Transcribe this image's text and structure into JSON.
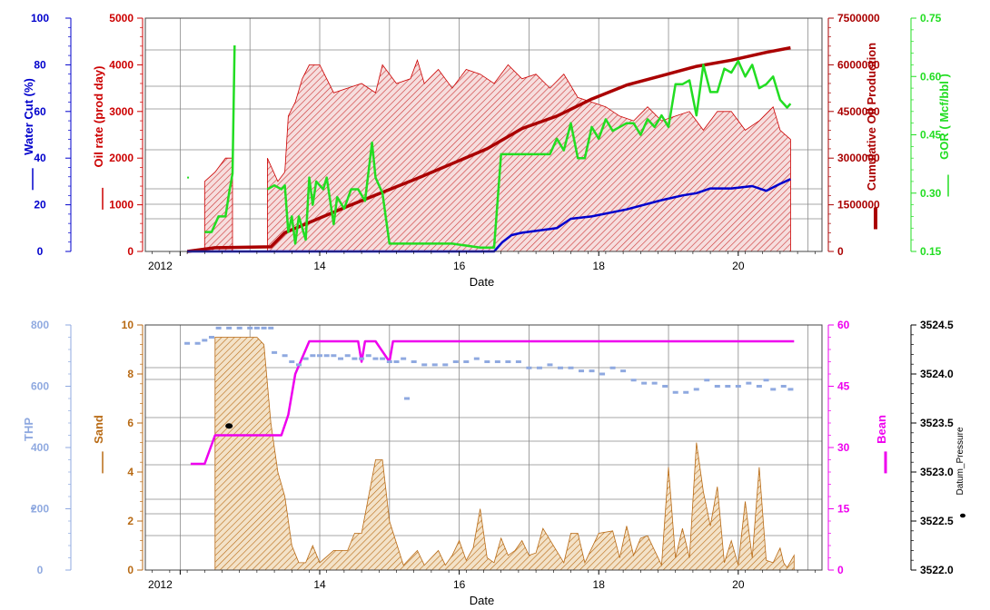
{
  "colors": {
    "blue": "#0000cc",
    "red": "#cc0000",
    "darkred": "#aa0000",
    "green": "#22dd22",
    "lightblue": "#8fa9e0",
    "brown": "#b86a14",
    "magenta": "#ee00ee",
    "hatch_red": "#cc3333",
    "fill_red": "#f6dede",
    "fill_brown": "#f3e2c8"
  },
  "chart_data": [
    {
      "type": "area",
      "xlabel": "Date",
      "x_ticks": [
        "2012",
        "14",
        "16",
        "18",
        "20"
      ],
      "xlim": [
        2011.6,
        2021.3
      ],
      "axes": [
        {
          "label": "Water Cut (%)",
          "ticks": [
            "0",
            "20",
            "40",
            "60",
            "80",
            "100"
          ],
          "ylim": [
            0,
            100
          ],
          "color": "#0000cc"
        },
        {
          "label": "Oil rate (prod day)",
          "ticks": [
            "0",
            "1000",
            "2000",
            "3000",
            "4000",
            "5000"
          ],
          "ylim": [
            0,
            5000
          ],
          "color": "#cc0000"
        },
        {
          "label": "Cumulative Oil Production",
          "ticks": [
            "0",
            "1500000",
            "3000000",
            "4500000",
            "6000000",
            "7500000"
          ],
          "ylim": [
            0,
            7500000
          ],
          "color": "#aa0000"
        },
        {
          "label": "GOR ( Mcf/bbl )",
          "ticks": [
            "0.15",
            "0.30",
            "0.45",
            "0.60",
            "0.75"
          ],
          "ylim": [
            0.15,
            0.75
          ],
          "color": "#22dd22"
        }
      ],
      "series": [
        {
          "axis": 1,
          "kind": "area",
          "x": [
            2012.45,
            2012.45,
            2012.6,
            2012.75,
            2012.85,
            2012.85,
            2013.35,
            2013.35,
            2013.5,
            2013.6,
            2013.65,
            2013.75,
            2013.85,
            2013.95,
            2014.1,
            2014.3,
            2014.5,
            2014.7,
            2014.9,
            2015.0,
            2015.2,
            2015.4,
            2015.5,
            2015.6,
            2015.8,
            2016.0,
            2016.2,
            2016.4,
            2016.6,
            2016.8,
            2017.0,
            2017.2,
            2017.4,
            2017.6,
            2017.8,
            2018.0,
            2018.2,
            2018.4,
            2018.6,
            2018.8,
            2019.0,
            2019.2,
            2019.4,
            2019.6,
            2019.8,
            2020.0,
            2020.2,
            2020.4,
            2020.6,
            2020.7,
            2020.85,
            2020.85
          ],
          "values": [
            0,
            1500,
            1700,
            2000,
            2000,
            0,
            0,
            2000,
            1500,
            1700,
            2900,
            3200,
            3700,
            4000,
            4000,
            3400,
            3500,
            3600,
            3400,
            4000,
            3600,
            3700,
            4100,
            3600,
            3900,
            3500,
            3900,
            3800,
            3600,
            4000,
            3700,
            3800,
            3500,
            3800,
            3300,
            3200,
            3100,
            2900,
            2800,
            3100,
            2800,
            2900,
            3000,
            2600,
            3000,
            3000,
            2600,
            2800,
            3100,
            2600,
            2400,
            0
          ]
        },
        {
          "axis": 2,
          "kind": "line",
          "x": [
            2012.2,
            2012.6,
            2013.4,
            2013.6,
            2014.5,
            2015.5,
            2016.5,
            2017.0,
            2017.5,
            2018.0,
            2018.5,
            2019.0,
            2019.5,
            2020.0,
            2020.5,
            2020.85
          ],
          "values": [
            0,
            120000,
            150000,
            600000,
            1450000,
            2350000,
            3300000,
            3950000,
            4350000,
            4900000,
            5350000,
            5650000,
            5950000,
            6150000,
            6400000,
            6550000
          ]
        },
        {
          "axis": 0,
          "kind": "line",
          "x": [
            2012.2,
            2016.6,
            2016.72,
            2016.85,
            2017.0,
            2017.5,
            2017.7,
            2018.0,
            2018.5,
            2019.0,
            2019.3,
            2019.5,
            2019.7,
            2020.0,
            2020.3,
            2020.5,
            2020.7,
            2020.85
          ],
          "values": [
            0,
            0,
            4,
            7,
            8,
            10,
            14,
            15,
            18,
            22,
            24,
            25,
            27,
            27,
            28,
            26,
            29,
            31
          ]
        },
        {
          "axis": 3,
          "kind": "line",
          "x": [
            2012.2,
            2012.2
          ],
          "values": [
            0.34,
            0.34
          ]
        },
        {
          "axis": 3,
          "kind": "line",
          "x": [
            2012.45,
            2012.55,
            2012.65,
            2012.75,
            2012.8,
            2012.85,
            2012.88
          ],
          "values": [
            0.2,
            0.2,
            0.24,
            0.24,
            0.3,
            0.35,
            0.68
          ]
        },
        {
          "axis": 3,
          "kind": "line",
          "x": [
            2013.35,
            2013.45,
            2013.55,
            2013.6,
            2013.65,
            2013.7,
            2013.75,
            2013.8,
            2013.9,
            2013.95,
            2014.0,
            2014.05,
            2014.15,
            2014.2,
            2014.3,
            2014.35,
            2014.45,
            2014.55,
            2014.65,
            2014.75,
            2014.85,
            2014.9,
            2015.0,
            2015.1,
            2015.2,
            2015.3,
            2015.6,
            2016.0,
            2016.4,
            2016.6,
            2016.7,
            2016.75,
            2016.85,
            2017.0,
            2017.4,
            2017.5,
            2017.6,
            2017.7,
            2017.8,
            2017.9,
            2018.0,
            2018.1,
            2018.2,
            2018.3,
            2018.5,
            2018.6,
            2018.7,
            2018.8,
            2018.9,
            2019.0,
            2019.1,
            2019.2,
            2019.3,
            2019.4,
            2019.5,
            2019.6,
            2019.7,
            2019.8,
            2019.9,
            2020.0,
            2020.1,
            2020.2,
            2020.3,
            2020.4,
            2020.5,
            2020.6,
            2020.7,
            2020.8,
            2020.85
          ],
          "values": [
            0.31,
            0.32,
            0.31,
            0.32,
            0.2,
            0.24,
            0.17,
            0.24,
            0.18,
            0.34,
            0.27,
            0.33,
            0.31,
            0.34,
            0.22,
            0.29,
            0.26,
            0.31,
            0.31,
            0.28,
            0.43,
            0.34,
            0.3,
            0.17,
            0.17,
            0.17,
            0.17,
            0.17,
            0.16,
            0.16,
            0.4,
            0.4,
            0.4,
            0.4,
            0.4,
            0.44,
            0.41,
            0.48,
            0.39,
            0.39,
            0.47,
            0.44,
            0.49,
            0.46,
            0.48,
            0.48,
            0.45,
            0.49,
            0.47,
            0.5,
            0.47,
            0.58,
            0.58,
            0.59,
            0.5,
            0.63,
            0.56,
            0.56,
            0.62,
            0.61,
            0.64,
            0.6,
            0.63,
            0.57,
            0.58,
            0.6,
            0.54,
            0.52,
            0.53
          ]
        }
      ]
    },
    {
      "type": "area",
      "xlabel": "Date",
      "x_ticks": [
        "2012",
        "14",
        "16",
        "18",
        "20"
      ],
      "xlim": [
        2011.6,
        2021.3
      ],
      "axes": [
        {
          "label": "THP",
          "ticks": [
            "0",
            "200",
            "400",
            "600",
            "800"
          ],
          "ylim": [
            0,
            800
          ],
          "color": "#8fa9e0"
        },
        {
          "label": "Sand",
          "ticks": [
            "0",
            "2",
            "4",
            "6",
            "8",
            "10"
          ],
          "ylim": [
            0,
            10
          ],
          "color": "#b86a14"
        },
        {
          "label": "Bean",
          "ticks": [
            "0",
            "15",
            "30",
            "45",
            "60"
          ],
          "ylim": [
            0,
            60
          ],
          "color": "#ee00ee"
        },
        {
          "label": "Datum_Pressure",
          "ticks": [
            "3522.0",
            "3522.5",
            "3523.0",
            "3523.5",
            "3524.0",
            "3524.5"
          ],
          "ylim": [
            3522.0,
            3524.5
          ],
          "color": "#000000"
        }
      ],
      "series": [
        {
          "axis": 1,
          "kind": "area",
          "x": [
            2012.6,
            2012.6,
            2012.7,
            2013.2,
            2013.3,
            2013.4,
            2013.5,
            2013.6,
            2013.7,
            2013.8,
            2013.9,
            2014.0,
            2014.1,
            2014.3,
            2014.5,
            2014.6,
            2014.7,
            2014.9,
            2015.0,
            2015.1,
            2015.3,
            2015.4,
            2015.5,
            2015.6,
            2015.7,
            2015.8,
            2015.9,
            2016.0,
            2016.1,
            2016.2,
            2016.3,
            2016.4,
            2016.5,
            2016.6,
            2016.7,
            2016.8,
            2016.9,
            2017.0,
            2017.1,
            2017.2,
            2017.3,
            2017.6,
            2017.7,
            2017.8,
            2017.9,
            2018.1,
            2018.3,
            2018.4,
            2018.5,
            2018.6,
            2018.7,
            2018.8,
            2019.0,
            2019.1,
            2019.2,
            2019.3,
            2019.4,
            2019.5,
            2019.6,
            2019.7,
            2019.8,
            2019.9,
            2020.0,
            2020.1,
            2020.2,
            2020.3,
            2020.4,
            2020.5,
            2020.6,
            2020.7,
            2020.75,
            2020.8,
            2020.9,
            2020.9
          ],
          "values": [
            0,
            9.5,
            9.5,
            9.5,
            9.2,
            6,
            4,
            3,
            1,
            0.3,
            0.3,
            1,
            0.3,
            0.8,
            0.8,
            1.5,
            1.5,
            4.5,
            4.5,
            2,
            0.2,
            0.5,
            0.8,
            0.2,
            0.5,
            0.8,
            0.2,
            0.6,
            1.2,
            0.4,
            0.9,
            2.5,
            0.5,
            0.3,
            1.3,
            0.6,
            0.8,
            1.2,
            0.6,
            0.7,
            1.7,
            0.3,
            1.5,
            1.5,
            0.3,
            1.5,
            1.6,
            0.5,
            1.8,
            0.6,
            1.3,
            1.4,
            0.2,
            4.2,
            0.5,
            1.7,
            0.5,
            5.2,
            3.2,
            1.8,
            3.4,
            0.3,
            1.2,
            0.2,
            2.8,
            0.5,
            4.2,
            0.4,
            0.3,
            0.9,
            0.3,
            0.1,
            0.6,
            0
          ]
        },
        {
          "axis": 2,
          "kind": "line",
          "x": [
            2012.25,
            2012.45,
            2012.6,
            2012.75,
            2013.55,
            2013.65,
            2013.75,
            2013.85,
            2013.95,
            2014.65,
            2014.7,
            2014.75,
            2014.9,
            2015.1,
            2015.15,
            2015.2,
            2015.3,
            2020.9
          ],
          "values": [
            26,
            26,
            33,
            33,
            33,
            38,
            48,
            52,
            56,
            56,
            51,
            56,
            56,
            51,
            56,
            56,
            56,
            56
          ]
        },
        {
          "axis": 0,
          "kind": "scatter",
          "x": [
            2012.2,
            2012.35,
            2012.45,
            2012.55,
            2012.65,
            2012.8,
            2012.95,
            2013.1,
            2013.2,
            2013.3,
            2013.4,
            2013.45,
            2013.6,
            2013.7,
            2013.8,
            2013.9,
            2014.0,
            2014.1,
            2014.2,
            2014.3,
            2014.4,
            2014.5,
            2014.6,
            2014.7,
            2014.8,
            2014.9,
            2015.0,
            2015.1,
            2015.2,
            2015.3,
            2015.35,
            2015.45,
            2015.6,
            2015.75,
            2015.9,
            2016.05,
            2016.2,
            2016.35,
            2016.5,
            2016.65,
            2016.8,
            2016.95,
            2017.1,
            2017.25,
            2017.4,
            2017.55,
            2017.7,
            2017.85,
            2018.0,
            2018.15,
            2018.3,
            2018.45,
            2018.6,
            2018.75,
            2018.9,
            2019.05,
            2019.2,
            2019.35,
            2019.5,
            2019.65,
            2019.8,
            2019.95,
            2020.1,
            2020.25,
            2020.4,
            2020.5,
            2020.6,
            2020.75,
            2020.85
          ],
          "values": [
            740,
            740,
            750,
            760,
            790,
            790,
            790,
            790,
            790,
            790,
            790,
            710,
            700,
            680,
            670,
            690,
            700,
            700,
            700,
            700,
            690,
            700,
            690,
            690,
            700,
            690,
            690,
            680,
            680,
            690,
            560,
            680,
            670,
            670,
            670,
            680,
            680,
            690,
            680,
            680,
            680,
            680,
            660,
            660,
            670,
            660,
            660,
            650,
            650,
            640,
            660,
            650,
            620,
            610,
            610,
            600,
            580,
            580,
            590,
            620,
            600,
            600,
            600,
            610,
            600,
            620,
            590,
            600,
            590
          ]
        },
        {
          "axis": 3,
          "kind": "point",
          "x": [
            2012.8
          ],
          "values": [
            3523.47
          ]
        }
      ]
    }
  ]
}
